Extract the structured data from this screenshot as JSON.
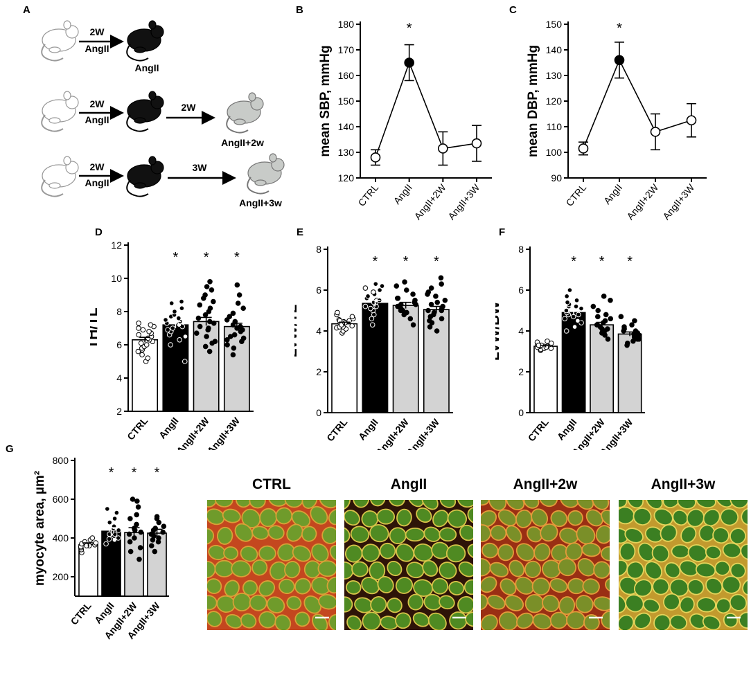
{
  "panels": {
    "A": "A",
    "B": "B",
    "C": "C",
    "D": "D",
    "E": "E",
    "F": "F",
    "G": "G"
  },
  "schematic": {
    "rows": [
      {
        "arrow1_top": "2W",
        "arrow1_bottom": "AngII",
        "result_label": "AngII"
      },
      {
        "arrow1_top": "2W",
        "arrow1_bottom": "AngII",
        "arrow2_label": "2W",
        "result_label": "AngII+2w"
      },
      {
        "arrow1_top": "2W",
        "arrow1_bottom": "AngII",
        "arrow2_label": "3W",
        "result_label": "AngII+3w"
      }
    ]
  },
  "micrographs": {
    "titles": [
      "CTRL",
      "AngII",
      "AngII+2w",
      "AngII+3w"
    ]
  },
  "chart_data": [
    {
      "panel": "B",
      "type": "line",
      "categories": [
        "CTRL",
        "AngII",
        "AngII+2W",
        "AngII+3W"
      ],
      "values": [
        128,
        165,
        131.5,
        133.5
      ],
      "errors": [
        3,
        7,
        6.5,
        7
      ],
      "filled": [
        false,
        true,
        false,
        false
      ],
      "significance": [
        "",
        "*",
        "",
        ""
      ],
      "ylabel": "mean SBP, mmHg",
      "ylim": [
        120,
        180
      ],
      "yticks": [
        120,
        130,
        140,
        150,
        160,
        170,
        180
      ]
    },
    {
      "panel": "C",
      "type": "line",
      "categories": [
        "CTRL",
        "AngII",
        "AngII+2W",
        "AngII+3W"
      ],
      "values": [
        101.5,
        136,
        108,
        112.5
      ],
      "errors": [
        2.5,
        7,
        7,
        6.5
      ],
      "filled": [
        false,
        true,
        false,
        false
      ],
      "significance": [
        "",
        "*",
        "",
        ""
      ],
      "ylabel": "mean DBP, mmHg",
      "ylim": [
        90,
        150
      ],
      "yticks": [
        90,
        100,
        110,
        120,
        130,
        140,
        150
      ]
    },
    {
      "panel": "D",
      "type": "bar",
      "categories": [
        "CTRL",
        "AngII",
        "AngII+2W",
        "AngII+3W"
      ],
      "values": [
        6.3,
        7.2,
        7.4,
        7.1
      ],
      "errors": [
        0.15,
        0.2,
        0.25,
        0.2
      ],
      "significance": [
        "",
        "*",
        "*",
        "*"
      ],
      "ylabel": "TH/TL",
      "ylim": [
        2,
        12
      ],
      "yticks": [
        2,
        4,
        6,
        8,
        10,
        12
      ],
      "points": [
        [
          5.0,
          5.2,
          5.4,
          5.6,
          5.7,
          5.8,
          5.9,
          6.0,
          6.1,
          6.2,
          6.3,
          6.4,
          6.5,
          6.6,
          6.7,
          6.8,
          6.9,
          7.0,
          7.1,
          7.2,
          7.3
        ],
        [
          5.0,
          6.0,
          6.3,
          6.5,
          6.6,
          6.8,
          6.9,
          7.0,
          7.1,
          7.2,
          7.3,
          7.4,
          7.5,
          7.6,
          7.7,
          7.8,
          8.0,
          8.2,
          8.5,
          8.6
        ],
        [
          5.6,
          5.9,
          6.2,
          6.5,
          6.7,
          6.9,
          7.1,
          7.3,
          7.4,
          7.6,
          7.8,
          8.0,
          8.2,
          8.4,
          8.6,
          8.8,
          9.0,
          9.3,
          9.5,
          9.8,
          6.1,
          7.0
        ],
        [
          5.4,
          5.8,
          6.0,
          6.2,
          6.4,
          6.5,
          6.6,
          6.8,
          7.0,
          7.1,
          7.2,
          7.4,
          7.5,
          7.7,
          7.9,
          8.2,
          8.5,
          9.0,
          9.6,
          6.3,
          6.9
        ]
      ]
    },
    {
      "panel": "E",
      "type": "bar",
      "categories": [
        "CTRL",
        "AngII",
        "AngII+2W",
        "AngII+3W"
      ],
      "values": [
        4.35,
        5.35,
        5.25,
        5.05
      ],
      "errors": [
        0.08,
        0.15,
        0.15,
        0.15
      ],
      "significance": [
        "",
        "*",
        "*",
        "*"
      ],
      "ylabel": "LVW/TL",
      "ylim": [
        0,
        8
      ],
      "yticks": [
        0,
        2,
        4,
        6,
        8
      ],
      "points": [
        [
          3.9,
          4.0,
          4.1,
          4.15,
          4.2,
          4.25,
          4.3,
          4.35,
          4.4,
          4.45,
          4.5,
          4.55,
          4.6,
          4.7,
          4.8,
          4.9,
          4.2,
          4.3,
          4.4,
          4.5
        ],
        [
          4.3,
          4.6,
          4.8,
          5.0,
          5.1,
          5.2,
          5.3,
          5.4,
          5.5,
          5.6,
          5.7,
          5.8,
          5.9,
          6.0,
          6.1,
          6.2,
          6.3,
          5.2,
          5.5
        ],
        [
          4.3,
          4.6,
          4.8,
          4.9,
          5.0,
          5.1,
          5.2,
          5.3,
          5.4,
          5.5,
          5.6,
          5.8,
          6.0,
          6.2,
          6.4,
          5.0,
          5.3,
          5.6
        ],
        [
          4.0,
          4.2,
          4.4,
          4.6,
          4.7,
          4.8,
          4.9,
          5.0,
          5.1,
          5.2,
          5.3,
          5.5,
          5.7,
          5.9,
          6.1,
          6.3,
          6.6,
          4.5,
          5.0,
          5.4,
          5.8
        ]
      ]
    },
    {
      "panel": "F",
      "type": "bar",
      "categories": [
        "CTRL",
        "AngII",
        "AngII+2W",
        "AngII+3W"
      ],
      "values": [
        3.25,
        4.9,
        4.3,
        3.85
      ],
      "errors": [
        0.05,
        0.12,
        0.12,
        0.1
      ],
      "significance": [
        "",
        "*",
        "*",
        "*"
      ],
      "ylabel": "LVW/BW",
      "ylim": [
        0,
        8
      ],
      "yticks": [
        0,
        2,
        4,
        6,
        8
      ],
      "points": [
        [
          3.05,
          3.1,
          3.15,
          3.2,
          3.2,
          3.25,
          3.25,
          3.3,
          3.3,
          3.35,
          3.35,
          3.4,
          3.45,
          3.5,
          3.15,
          3.25,
          3.3,
          3.2
        ],
        [
          4.0,
          4.2,
          4.4,
          4.5,
          4.6,
          4.7,
          4.8,
          4.9,
          5.0,
          5.1,
          5.2,
          5.3,
          5.4,
          5.5,
          5.7,
          6.0,
          4.8,
          5.0,
          5.2
        ],
        [
          3.6,
          3.8,
          3.9,
          4.0,
          4.1,
          4.2,
          4.3,
          4.4,
          4.5,
          4.6,
          4.7,
          4.8,
          5.0,
          5.2,
          5.5,
          5.7,
          4.3,
          4.1
        ],
        [
          3.3,
          3.4,
          3.5,
          3.6,
          3.7,
          3.8,
          3.85,
          3.9,
          4.0,
          4.1,
          4.2,
          4.3,
          4.5,
          4.7,
          3.7,
          3.9,
          4.0,
          3.6
        ]
      ]
    },
    {
      "panel": "G",
      "type": "bar",
      "categories": [
        "CTRL",
        "AngII",
        "AngII+2W",
        "AngII+3W"
      ],
      "values": [
        365,
        435,
        428,
        425
      ],
      "errors": [
        10,
        18,
        25,
        20
      ],
      "significance": [
        "",
        "*",
        "*",
        "*"
      ],
      "ylabel": "myocyte area, µm²",
      "ylim": [
        100,
        800
      ],
      "yticks": [
        200,
        400,
        600,
        800
      ],
      "points": [
        [
          325,
          340,
          350,
          355,
          360,
          365,
          370,
          375,
          380,
          390,
          400,
          360
        ],
        [
          370,
          390,
          400,
          410,
          420,
          430,
          440,
          450,
          460,
          480,
          500,
          530,
          550,
          420,
          395
        ],
        [
          290,
          330,
          350,
          380,
          400,
          420,
          440,
          450,
          470,
          500,
          520,
          560,
          590,
          600,
          430
        ],
        [
          330,
          360,
          380,
          400,
          410,
          420,
          430,
          440,
          460,
          480,
          500,
          510,
          390,
          450
        ]
      ]
    }
  ]
}
